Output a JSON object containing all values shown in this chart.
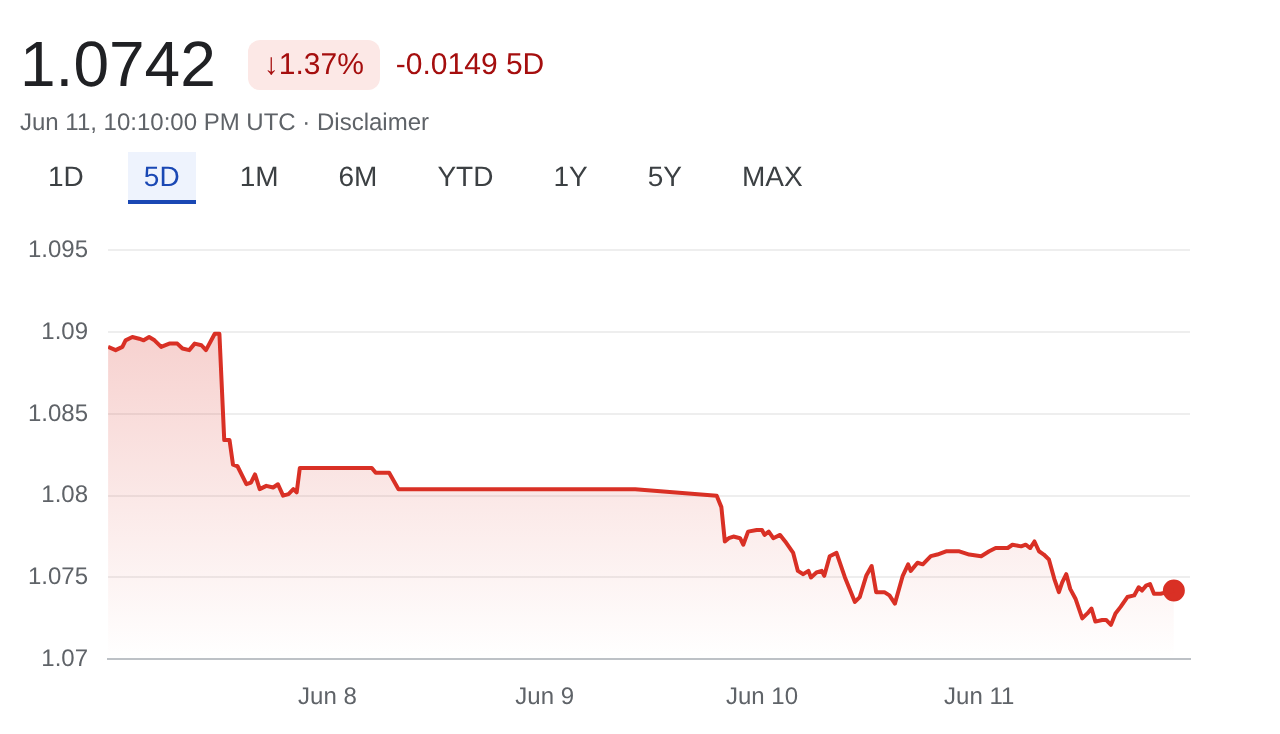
{
  "chart_data": {
    "type": "area",
    "title": "1.0742",
    "subtitle": "Jun 11, 10:10:00 PM UTC · Disclaimer",
    "annotations": [
      "↓1.37%",
      "-0.0149 5D",
      "1D",
      "5D",
      "1M",
      "6M",
      "YTD",
      "1Y",
      "5Y",
      "MAX"
    ],
    "series": [
      {
        "color": "#d93025",
        "x": [
          "--06-06T23:46",
          "--06-07T00:36",
          "--06-07T01:21",
          "--06-07T01:42",
          "--06-07T02:27",
          "--06-07T03:12",
          "--06-07T03:42",
          "--06-07T04:18",
          "--06-07T04:54",
          "--06-07T05:38",
          "--06-07T06:32",
          "--06-07T07:25",
          "--06-07T07:59",
          "--06-07T08:44",
          "--06-07T09:20",
          "--06-07T10:05",
          "--06-07T10:35",
          "--06-07T11:33",
          "--06-07T12:04",
          "--06-07T12:36",
          "--06-07T13:11",
          "--06-07T13:34",
          "--06-07T14:04",
          "--06-07T15:03",
          "--06-07T15:33",
          "--06-07T16:00",
          "--06-07T16:31",
          "--06-07T17:15",
          "--06-07T18:00",
          "--06-07T18:32",
          "--06-07T19:06",
          "--06-07T19:42",
          "--06-07T20:14",
          "--06-07T20:36",
          "--06-07T20:57",
          "--06-08T04:54",
          "--06-08T05:20",
          "--06-08T06:49",
          "--06-08T07:51",
          "--06-09T10:00",
          "--06-09T19:00",
          "--06-09T19:31",
          "--06-09T19:54",
          "--06-09T20:20",
          "--06-09T20:51",
          "--06-09T21:35",
          "--06-09T21:56",
          "--06-09T22:28",
          "--06-09T23:25",
          "--06-10T00:00",
          "--06-10T00:17",
          "--06-10T00:45",
          "--06-10T01:15",
          "--06-10T02:00",
          "--06-10T02:34",
          "--06-10T03:27",
          "--06-10T03:58",
          "--06-10T04:34",
          "--06-10T05:08",
          "--06-10T05:25",
          "--06-10T06:01",
          "--06-10T06:36",
          "--06-10T06:53",
          "--06-10T07:29",
          "--06-10T08:14",
          "--06-10T09:10",
          "--06-10T10:16",
          "--06-10T10:48",
          "--06-10T11:31",
          "--06-10T12:07",
          "--06-10T12:37",
          "--06-10T13:31",
          "--06-10T14:05",
          "--06-10T14:41",
          "--06-10T15:33",
          "--06-10T16:09",
          "--06-10T16:26",
          "--06-10T17:11",
          "--06-10T17:46",
          "--06-10T18:39",
          "--06-10T19:22",
          "--06-10T20:20",
          "--06-10T21:48",
          "--06-10T22:54",
          "--06-11T00:13",
          "--06-11T01:06",
          "--06-11T01:49",
          "--06-11T03:09",
          "--06-11T03:40",
          "--06-11T04:38",
          "--06-11T05:08",
          "--06-11T05:38",
          "--06-11T06:06",
          "--06-11T06:36",
          "--06-11T07:08",
          "--06-11T07:42",
          "--06-11T08:18",
          "--06-11T08:48",
          "--06-11T09:10",
          "--06-11T09:37",
          "--06-11T10:03",
          "--06-11T10:38",
          "--06-11T11:23",
          "--06-11T11:57",
          "--06-11T12:24",
          "--06-11T12:50",
          "--06-11T13:35",
          "--06-11T14:01",
          "--06-11T14:33",
          "--06-11T15:03",
          "--06-11T15:37",
          "--06-11T16:22",
          "--06-11T17:07",
          "--06-11T17:37",
          "--06-11T17:59",
          "--06-11T18:26",
          "--06-11T18:52",
          "--06-11T19:18",
          "--06-11T20:02",
          "--06-11T20:46",
          "--06-11T21:30"
        ],
        "values": [
          1.0891,
          1.0889,
          1.0891,
          1.0895,
          1.0897,
          1.0896,
          1.0895,
          1.0897,
          1.0895,
          1.0891,
          1.0893,
          1.0893,
          1.089,
          1.0889,
          1.0893,
          1.0892,
          1.0889,
          1.0899,
          1.0899,
          1.0834,
          1.0834,
          1.0819,
          1.0818,
          1.0807,
          1.0808,
          1.0813,
          1.0804,
          1.0806,
          1.0805,
          1.0807,
          1.08,
          1.0801,
          1.0804,
          1.0802,
          1.0817,
          1.0817,
          1.0814,
          1.0814,
          1.0804,
          1.0804,
          1.08,
          1.0793,
          1.0772,
          1.0774,
          1.0775,
          1.0774,
          1.077,
          1.0778,
          1.0779,
          1.0779,
          1.0776,
          1.0778,
          1.0774,
          1.0776,
          1.0772,
          1.0765,
          1.0754,
          1.0752,
          1.0754,
          1.075,
          1.0753,
          1.0754,
          1.0751,
          1.0763,
          1.0765,
          1.075,
          1.0735,
          1.0738,
          1.0751,
          1.0757,
          1.0741,
          1.0741,
          1.0739,
          1.0734,
          1.0751,
          1.0758,
          1.0754,
          1.0759,
          1.0758,
          1.0763,
          1.0764,
          1.0766,
          1.0766,
          1.0764,
          1.0763,
          1.0766,
          1.0768,
          1.0768,
          1.077,
          1.0769,
          1.077,
          1.0768,
          1.0772,
          1.0766,
          1.0764,
          1.0761,
          1.0749,
          1.0741,
          1.0747,
          1.0752,
          1.0743,
          1.0737,
          1.0725,
          1.0728,
          1.0731,
          1.0723,
          1.0724,
          1.0724,
          1.0721,
          1.0728,
          1.0732,
          1.0738,
          1.0739,
          1.0744,
          1.0742,
          1.0745,
          1.0746,
          1.074,
          1.074,
          1.0741,
          1.0742
        ]
      },
      {
        "type": "scatter",
        "color": "#d93025",
        "x": [
          "--06-11T21:30"
        ],
        "values": [
          1.0742
        ]
      }
    ],
    "xlim": [
      "--06-06T23:46",
      "--06-11T23:17"
    ],
    "xticks": [
      {
        "value": "--06-08",
        "label": "Jun 8"
      },
      {
        "value": "--06-09",
        "label": "Jun 9"
      },
      {
        "value": "--06-10",
        "label": "Jun 10"
      },
      {
        "value": "--06-11",
        "label": "Jun 11"
      }
    ],
    "ylim": [
      1.07,
      1.095
    ],
    "yticks": [
      1.07,
      1.075,
      1.08,
      1.085,
      1.09,
      1.095
    ],
    "grid": "y",
    "legend": false,
    "line_style": "solid"
  }
}
